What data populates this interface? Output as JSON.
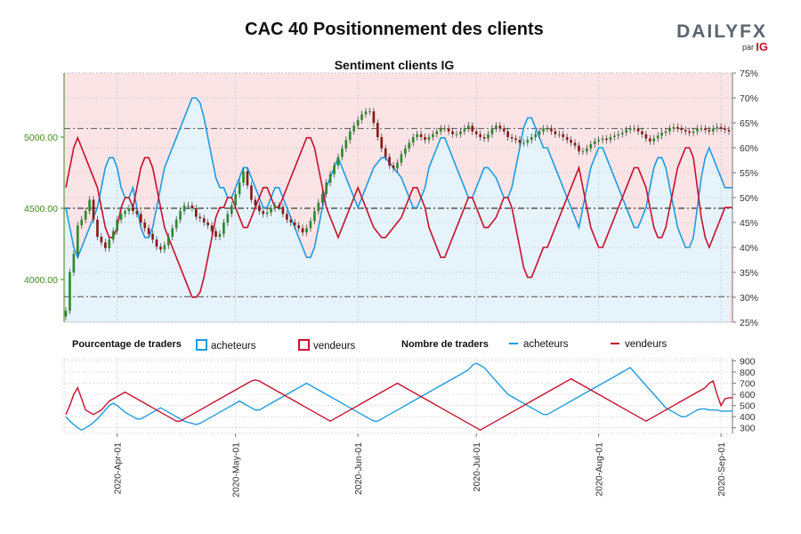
{
  "title": "CAC 40 Positionnement des clients",
  "subtitle": "Sentiment clients IG",
  "logo": {
    "main": "DAILYFX",
    "par": "par",
    "brand": "IG"
  },
  "colors": {
    "buyers": "#1e9be0",
    "sellers": "#c8102e",
    "buyers_fill": "#e6f3fb",
    "sellers_fill": "#fbe4e6",
    "price_axis": "#3f8a1f",
    "candle_up": "#2e8b2e",
    "candle_down": "#8b1a1a"
  },
  "legend": {
    "pct_title": "Pourcentage de traders",
    "pct_buyers": "acheteurs",
    "pct_sellers": "vendeurs",
    "num_title": "Nombre de traders",
    "num_buyers": "acheteurs",
    "num_sellers": "vendeurs"
  },
  "chart_data": [
    {
      "type": "candlestick",
      "title": "CAC 40 Positionnement des clients",
      "ylim": [
        3700,
        5450
      ],
      "y_ticks": [
        "4000.00",
        "4500.00",
        "5000.00"
      ],
      "x_ticks": [
        "2020-Apr-01",
        "2020-May-01",
        "2020-Jun-01",
        "2020-Jul-01",
        "2020-Aug-01",
        "2020-Sep-01"
      ],
      "close": [
        3780,
        4050,
        4180,
        4380,
        4420,
        4480,
        4560,
        4420,
        4300,
        4260,
        4220,
        4280,
        4340,
        4420,
        4460,
        4480,
        4500,
        4480,
        4460,
        4400,
        4360,
        4320,
        4280,
        4230,
        4210,
        4240,
        4300,
        4360,
        4420,
        4480,
        4520,
        4520,
        4500,
        4440,
        4430,
        4400,
        4380,
        4340,
        4300,
        4320,
        4400,
        4460,
        4520,
        4600,
        4680,
        4760,
        4660,
        4560,
        4520,
        4480,
        4460,
        4470,
        4500,
        4520,
        4510,
        4460,
        4420,
        4400,
        4380,
        4360,
        4330,
        4360,
        4410,
        4480,
        4540,
        4600,
        4680,
        4740,
        4800,
        4860,
        4920,
        4980,
        5040,
        5080,
        5120,
        5160,
        5180,
        5180,
        5100,
        5000,
        4920,
        4860,
        4800,
        4780,
        4820,
        4880,
        4920,
        4960,
        5000,
        5020,
        5000,
        4980,
        5000,
        5020,
        5040,
        5060,
        5060,
        5040,
        5020,
        5020,
        5040,
        5060,
        5080,
        5040,
        5020,
        5000,
        4990,
        5020,
        5060,
        5080,
        5060,
        5040,
        5000,
        4990,
        4980,
        4960,
        4960,
        4980,
        5000,
        5020,
        5040,
        5060,
        5060,
        5040,
        5020,
        5020,
        5000,
        4980,
        4960,
        4940,
        4900,
        4900,
        4920,
        4950,
        4970,
        4980,
        4990,
        4980,
        5000,
        5010,
        5020,
        5030,
        5050,
        5060,
        5060,
        5040,
        5020,
        4990,
        4970,
        4990,
        5010,
        5030,
        5040,
        5060,
        5070,
        5060,
        5050,
        5040,
        5030,
        5040,
        5060,
        5060,
        5050,
        5040,
        5060,
        5070,
        5060,
        5050,
        5040
      ],
      "buyers_pct": [
        48,
        44,
        40,
        38,
        40,
        42,
        44,
        46,
        48,
        52,
        56,
        58,
        58,
        56,
        52,
        50,
        50,
        52,
        48,
        44,
        42,
        42,
        44,
        48,
        52,
        56,
        58,
        60,
        62,
        64,
        66,
        68,
        70,
        70,
        69,
        66,
        62,
        58,
        54,
        52,
        52,
        50,
        50,
        52,
        54,
        56,
        56,
        54,
        52,
        50,
        48,
        48,
        50,
        52,
        52,
        50,
        48,
        46,
        44,
        42,
        40,
        38,
        38,
        40,
        44,
        48,
        52,
        54,
        56,
        58,
        56,
        54,
        52,
        50,
        48,
        50,
        52,
        54,
        56,
        57,
        58,
        58,
        57,
        56,
        55,
        54,
        52,
        50,
        48,
        48,
        50,
        52,
        56,
        58,
        60,
        62,
        62,
        60,
        58,
        56,
        54,
        52,
        50,
        50,
        52,
        54,
        56,
        56,
        55,
        54,
        52,
        50,
        50,
        52,
        56,
        60,
        64,
        66,
        66,
        64,
        62,
        60,
        60,
        58,
        56,
        54,
        52,
        50,
        48,
        46,
        44,
        48,
        52,
        56,
        58,
        60,
        60,
        58,
        56,
        54,
        52,
        50,
        48,
        46,
        44,
        44,
        46,
        48,
        52,
        56,
        58,
        58,
        56,
        52,
        48,
        44,
        42,
        40,
        40,
        42,
        48,
        54,
        58,
        60,
        58,
        56,
        54,
        52,
        52,
        52
      ],
      "series": [
        {
          "name": "acheteurs",
          "type": "area"
        },
        {
          "name": "vendeurs",
          "type": "line"
        }
      ],
      "y2lim": [
        25,
        75
      ],
      "y2_ticks": [
        "25%",
        "30%",
        "35%",
        "40%",
        "45%",
        "50%",
        "55%",
        "60%",
        "65%",
        "70%",
        "75%"
      ],
      "reference_lines": [
        5060,
        4500,
        3880
      ]
    },
    {
      "type": "line",
      "ylim": [
        250,
        920
      ],
      "y_ticks": [
        "300",
        "400",
        "500",
        "600",
        "700",
        "800",
        "900"
      ],
      "series": [
        {
          "name": "acheteurs",
          "values": [
            400,
            360,
            330,
            300,
            280,
            300,
            320,
            350,
            380,
            420,
            460,
            500,
            520,
            500,
            470,
            440,
            420,
            400,
            380,
            380,
            400,
            420,
            440,
            460,
            480,
            460,
            440,
            420,
            400,
            380,
            360,
            350,
            340,
            330,
            340,
            360,
            380,
            400,
            420,
            440,
            460,
            480,
            500,
            520,
            540,
            520,
            500,
            480,
            460,
            460,
            480,
            500,
            520,
            540,
            560,
            580,
            600,
            620,
            640,
            660,
            680,
            700,
            680,
            660,
            640,
            620,
            600,
            580,
            560,
            540,
            520,
            500,
            480,
            460,
            440,
            420,
            400,
            380,
            360,
            360,
            380,
            400,
            420,
            440,
            460,
            480,
            500,
            520,
            540,
            560,
            580,
            600,
            620,
            640,
            660,
            680,
            700,
            720,
            740,
            760,
            780,
            800,
            820,
            860,
            880,
            860,
            840,
            800,
            760,
            720,
            680,
            640,
            600,
            580,
            560,
            540,
            520,
            500,
            480,
            460,
            440,
            420,
            420,
            440,
            460,
            480,
            500,
            520,
            540,
            560,
            580,
            600,
            620,
            640,
            660,
            680,
            700,
            720,
            740,
            760,
            780,
            800,
            820,
            840,
            800,
            760,
            720,
            680,
            640,
            600,
            560,
            520,
            480,
            460,
            440,
            420,
            400,
            400,
            420,
            440,
            460,
            470,
            470,
            460,
            460,
            460,
            450,
            450,
            450,
            450
          ]
        },
        {
          "name": "vendeurs",
          "values": [
            420,
            500,
            600,
            660,
            560,
            460,
            440,
            420,
            440,
            460,
            500,
            540,
            560,
            580,
            600,
            620,
            600,
            580,
            560,
            540,
            520,
            500,
            480,
            460,
            440,
            420,
            400,
            380,
            360,
            360,
            380,
            400,
            420,
            440,
            460,
            480,
            500,
            520,
            540,
            560,
            580,
            600,
            620,
            640,
            660,
            680,
            700,
            720,
            730,
            720,
            700,
            680,
            660,
            640,
            620,
            600,
            580,
            560,
            540,
            520,
            500,
            480,
            460,
            440,
            420,
            400,
            380,
            360,
            380,
            400,
            420,
            440,
            460,
            480,
            500,
            520,
            540,
            560,
            580,
            600,
            620,
            640,
            660,
            680,
            700,
            680,
            660,
            640,
            620,
            600,
            580,
            560,
            540,
            520,
            500,
            480,
            460,
            440,
            420,
            400,
            380,
            360,
            340,
            320,
            300,
            280,
            300,
            320,
            340,
            360,
            380,
            400,
            420,
            440,
            460,
            480,
            500,
            520,
            540,
            560,
            580,
            600,
            620,
            640,
            660,
            680,
            700,
            720,
            740,
            720,
            700,
            680,
            660,
            640,
            620,
            600,
            580,
            560,
            540,
            520,
            500,
            480,
            460,
            440,
            420,
            400,
            380,
            360,
            380,
            400,
            420,
            440,
            460,
            480,
            500,
            520,
            540,
            560,
            580,
            600,
            620,
            640,
            660,
            700,
            720,
            600,
            500,
            560,
            570,
            570
          ]
        }
      ]
    }
  ]
}
